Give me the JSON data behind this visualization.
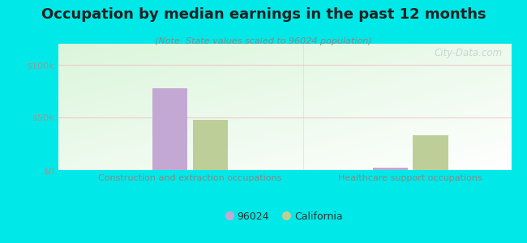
{
  "title": "Occupation by median earnings in the past 12 months",
  "subtitle": "(Note: State values scaled to 96024 population)",
  "categories": [
    "Construction and extraction occupations",
    "Healthcare support occupations"
  ],
  "values_96024": [
    78000,
    2000
  ],
  "values_california": [
    48000,
    33000
  ],
  "color_96024": "#c4a8d4",
  "color_california": "#bece98",
  "ylim": [
    0,
    120000
  ],
  "yticks": [
    0,
    50000,
    100000
  ],
  "ytick_labels": [
    "$0",
    "$50k",
    "$100k"
  ],
  "background_color": "#00e8e8",
  "legend_label_96024": "96024",
  "legend_label_california": "California",
  "watermark": "City-Data.com",
  "bar_width": 0.28,
  "title_fontsize": 13,
  "subtitle_fontsize": 8,
  "tick_fontsize": 8,
  "xlabel_fontsize": 8
}
